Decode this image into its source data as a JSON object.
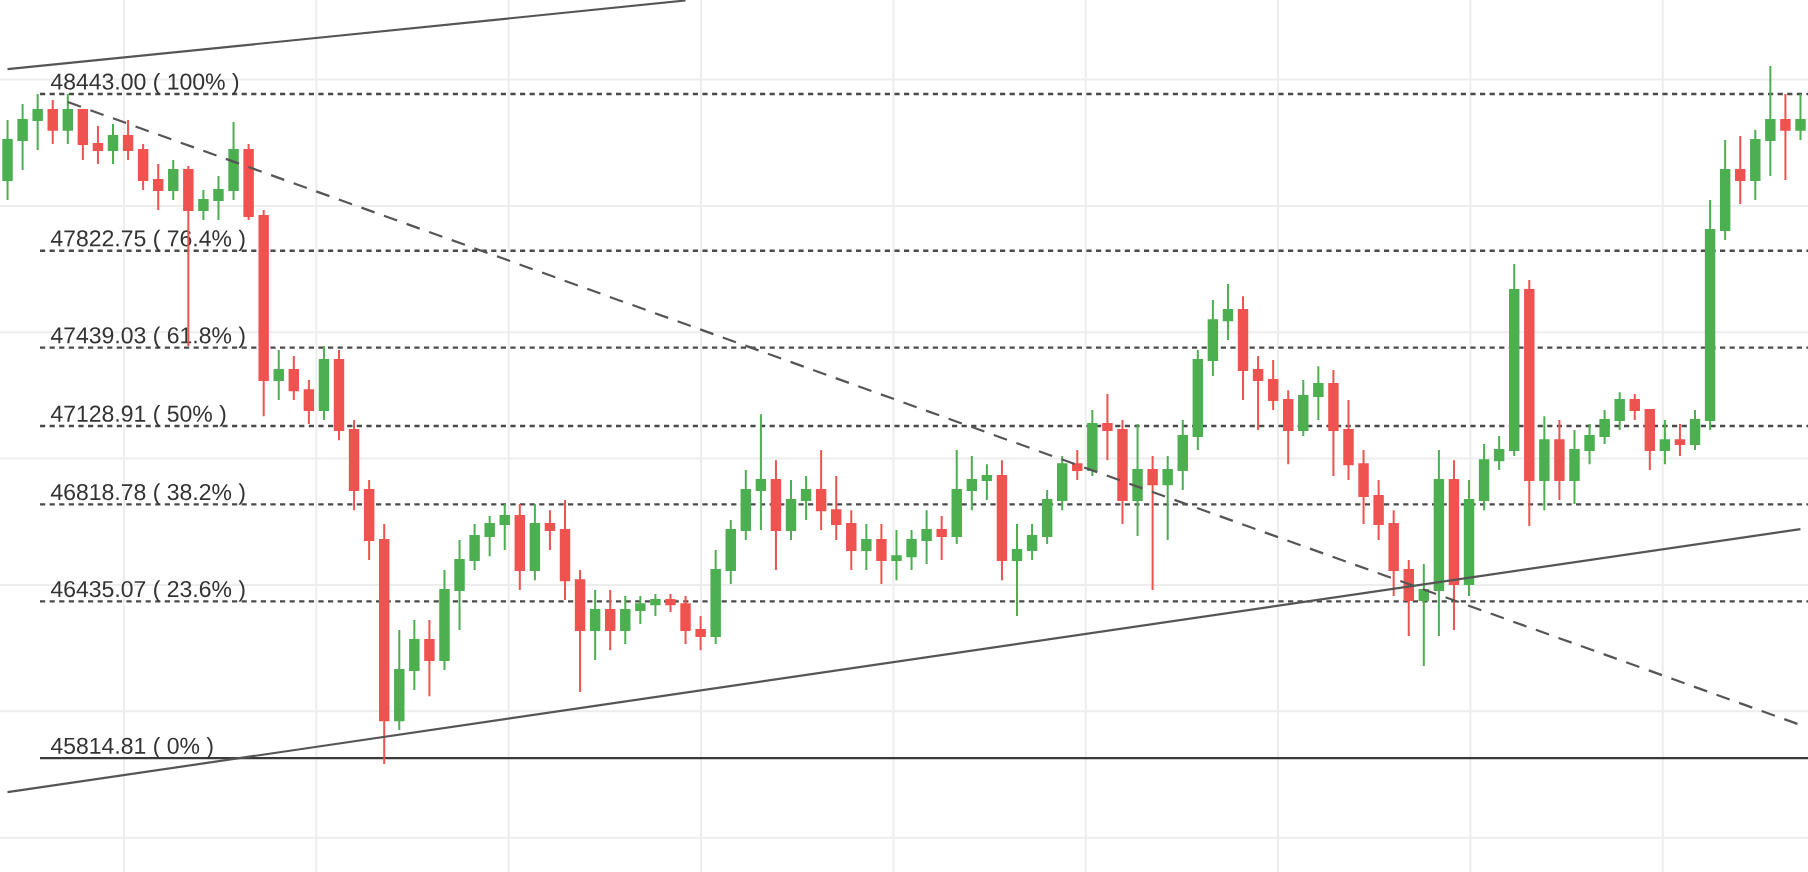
{
  "chart_data": {
    "type": "candlestick",
    "categories": [
      null,
      null,
      null,
      null,
      null,
      null,
      null,
      null,
      null,
      null,
      null,
      null,
      null,
      null,
      null,
      null,
      null,
      null,
      null,
      null,
      null,
      null,
      null,
      null,
      null,
      null,
      null,
      null,
      null,
      null,
      null,
      null,
      null,
      null,
      null,
      null,
      null,
      null,
      null,
      null,
      null,
      null,
      null,
      null,
      null,
      null,
      null,
      null,
      null,
      null,
      null,
      null,
      null,
      null,
      null,
      null,
      null,
      null,
      null,
      null,
      null,
      null,
      null,
      null,
      null,
      null,
      null,
      null,
      null,
      null,
      null,
      null,
      null,
      null,
      null,
      null,
      null,
      null,
      null,
      null,
      null,
      null,
      null,
      null,
      null,
      null,
      null,
      null,
      null,
      null,
      null,
      null,
      null,
      null,
      null,
      null,
      null,
      null,
      null,
      null,
      null,
      null,
      null,
      null,
      null,
      null,
      null,
      null,
      null,
      null,
      null,
      null,
      null,
      null,
      null,
      null,
      null,
      null,
      null,
      null
    ],
    "ylim": [
      45364,
      48815
    ],
    "yticks": [
      {
        "value": 45500,
        "label": null
      },
      {
        "value": 46000,
        "label": null
      },
      {
        "value": 46500,
        "label": null
      },
      {
        "value": 47000,
        "label": null
      },
      {
        "value": 47500,
        "label": null
      },
      {
        "value": 48000,
        "label": null
      },
      {
        "value": 48500,
        "label": null
      }
    ],
    "grid": true,
    "ref_lines": [
      {
        "axis": "y",
        "value": 48443.0,
        "label": "48443.00 ( 100% )",
        "line_style": "dashed",
        "color": "#4a4a4a"
      },
      {
        "axis": "y",
        "value": 47822.75,
        "label": "47822.75 ( 76.4% )",
        "line_style": "dashed",
        "color": "#4a4a4a"
      },
      {
        "axis": "y",
        "value": 47439.03,
        "label": "47439.03 ( 61.8% )",
        "line_style": "dashed",
        "color": "#4a4a4a"
      },
      {
        "axis": "y",
        "value": 47128.91,
        "label": "47128.91 ( 50% )",
        "line_style": "dashed",
        "color": "#4a4a4a"
      },
      {
        "axis": "y",
        "value": 46818.78,
        "label": "46818.78 ( 38.2% )",
        "line_style": "dashed",
        "color": "#4a4a4a"
      },
      {
        "axis": "y",
        "value": 46435.07,
        "label": "46435.07 ( 23.6% )",
        "line_style": "dashed",
        "color": "#4a4a4a"
      },
      {
        "axis": "y",
        "value": 45814.81,
        "label": "45814.81 ( 0% )",
        "line_style": "solid",
        "color": "#3a3a3a"
      }
    ],
    "series": [
      {
        "ohlc": [
          [
            48103,
            48340,
            48023,
            48261
          ],
          [
            48261,
            48403,
            48142,
            48340
          ],
          [
            48340,
            48443,
            48221,
            48380
          ],
          [
            48380,
            48419,
            48245,
            48301
          ],
          [
            48301,
            48443,
            48245,
            48380
          ],
          [
            48380,
            48380,
            48182,
            48245
          ],
          [
            48245,
            48316,
            48166,
            48221
          ],
          [
            48221,
            48324,
            48166,
            48277
          ],
          [
            48277,
            48340,
            48182,
            48221
          ],
          [
            48221,
            48245,
            48063,
            48103
          ],
          [
            48103,
            48166,
            47984,
            48063
          ],
          [
            48063,
            48182,
            48023,
            48142
          ],
          [
            48142,
            48158,
            47446,
            47984
          ],
          [
            47984,
            48063,
            47944,
            48023
          ],
          [
            48023,
            48118,
            47944,
            48063
          ],
          [
            48063,
            48332,
            48023,
            48221
          ],
          [
            48221,
            48245,
            47944,
            47960
          ],
          [
            47960,
            47984,
            47168,
            47311
          ],
          [
            47311,
            47430,
            47232,
            47351
          ],
          [
            47351,
            47406,
            47232,
            47271
          ],
          [
            47271,
            47311,
            47137,
            47192
          ],
          [
            47192,
            47446,
            47153,
            47390
          ],
          [
            47390,
            47430,
            47073,
            47113
          ],
          [
            47113,
            47153,
            46796,
            46876
          ],
          [
            46876,
            46915,
            46599,
            46678
          ],
          [
            46678,
            46741,
            45791,
            45965
          ],
          [
            45965,
            46322,
            45926,
            46163
          ],
          [
            46163,
            46361,
            46084,
            46282
          ],
          [
            46282,
            46361,
            46060,
            46203
          ],
          [
            46203,
            46559,
            46163,
            46480
          ],
          [
            46480,
            46678,
            46322,
            46599
          ],
          [
            46599,
            46741,
            46559,
            46694
          ],
          [
            46694,
            46773,
            46614,
            46741
          ],
          [
            46741,
            46820,
            46638,
            46773
          ],
          [
            46773,
            46820,
            46480,
            46559
          ],
          [
            46559,
            46820,
            46519,
            46741
          ],
          [
            46741,
            46796,
            46638,
            46717
          ],
          [
            46717,
            46836,
            46440,
            46519
          ],
          [
            46519,
            46559,
            46076,
            46322
          ],
          [
            46322,
            46480,
            46203,
            46401
          ],
          [
            46401,
            46480,
            46242,
            46322
          ],
          [
            46322,
            46456,
            46266,
            46401
          ],
          [
            46401,
            46456,
            46345,
            46424
          ],
          [
            46424,
            46464,
            46377,
            46440
          ],
          [
            46440,
            46464,
            46393,
            46424
          ],
          [
            46424,
            46456,
            46266,
            46322
          ],
          [
            46322,
            46377,
            46242,
            46298
          ],
          [
            46298,
            46638,
            46266,
            46559
          ],
          [
            46559,
            46757,
            46504,
            46717
          ],
          [
            46717,
            46955,
            46678,
            46876
          ],
          [
            46876,
            47176,
            46717,
            46915
          ],
          [
            46915,
            46994,
            46559,
            46717
          ],
          [
            46717,
            46915,
            46678,
            46836
          ],
          [
            46836,
            46931,
            46757,
            46876
          ],
          [
            46876,
            47034,
            46717,
            46796
          ],
          [
            46796,
            46931,
            46678,
            46741
          ],
          [
            46741,
            46796,
            46559,
            46638
          ],
          [
            46638,
            46741,
            46559,
            46678
          ],
          [
            46678,
            46741,
            46504,
            46599
          ],
          [
            46599,
            46717,
            46519,
            46614
          ],
          [
            46614,
            46717,
            46559,
            46678
          ],
          [
            46678,
            46796,
            46583,
            46717
          ],
          [
            46717,
            46773,
            46599,
            46694
          ],
          [
            46694,
            47034,
            46662,
            46876
          ],
          [
            46876,
            47010,
            46796,
            46915
          ],
          [
            46915,
            46978,
            46836,
            46931
          ],
          [
            46931,
            46994,
            46519,
            46599
          ],
          [
            46599,
            46741,
            46377,
            46638
          ],
          [
            46638,
            46741,
            46599,
            46694
          ],
          [
            46694,
            46876,
            46662,
            46836
          ],
          [
            46836,
            47010,
            46796,
            46978
          ],
          [
            46978,
            47034,
            46915,
            46955
          ],
          [
            46955,
            47192,
            46931,
            47137
          ],
          [
            47137,
            47256,
            46994,
            47113
          ],
          [
            47113,
            47153,
            46741,
            46836
          ],
          [
            46836,
            47137,
            46694,
            46955
          ],
          [
            46955,
            47010,
            46480,
            46899
          ],
          [
            46899,
            47010,
            46678,
            46955
          ],
          [
            46955,
            47153,
            46876,
            47089
          ],
          [
            47089,
            47430,
            47034,
            47390
          ],
          [
            47390,
            47628,
            47327,
            47548
          ],
          [
            47548,
            47691,
            47469,
            47588
          ],
          [
            47588,
            47643,
            47232,
            47351
          ],
          [
            47351,
            47406,
            47113,
            47311
          ],
          [
            47311,
            47390,
            47192,
            47232
          ],
          [
            47232,
            47271,
            46978,
            47113
          ],
          [
            47113,
            47311,
            47089,
            47248
          ],
          [
            47248,
            47366,
            47153,
            47295
          ],
          [
            47295,
            47351,
            46931,
            47113
          ],
          [
            47113,
            47232,
            46915,
            46978
          ],
          [
            46978,
            47034,
            46741,
            46852
          ],
          [
            46852,
            46915,
            46678,
            46741
          ],
          [
            46741,
            46796,
            46456,
            46559
          ],
          [
            46559,
            46599,
            46298,
            46440
          ],
          [
            46440,
            46583,
            46179,
            46480
          ],
          [
            46480,
            47034,
            46298,
            46915
          ],
          [
            46915,
            46994,
            46322,
            46504
          ],
          [
            46504,
            46915,
            46456,
            46836
          ],
          [
            46836,
            47058,
            46796,
            46994
          ],
          [
            46994,
            47089,
            46955,
            47034
          ],
          [
            47034,
            47770,
            47010,
            47667
          ],
          [
            47667,
            47707,
            46733,
            46915
          ],
          [
            46915,
            47168,
            46796,
            47073
          ],
          [
            47073,
            47153,
            46836,
            46915
          ],
          [
            46915,
            47113,
            46820,
            47034
          ],
          [
            47034,
            47137,
            46978,
            47089
          ],
          [
            47089,
            47192,
            47058,
            47153
          ],
          [
            47153,
            47263,
            47113,
            47232
          ],
          [
            47232,
            47256,
            47153,
            47192
          ],
          [
            47192,
            47192,
            46955,
            47034
          ],
          [
            47034,
            47153,
            46978,
            47073
          ],
          [
            47073,
            47137,
            47010,
            47058
          ],
          [
            47058,
            47192,
            47034,
            47153
          ],
          [
            47153,
            48023,
            47113,
            47905
          ],
          [
            47905,
            48261,
            47865,
            48142
          ],
          [
            48142,
            48277,
            48008,
            48103
          ],
          [
            48103,
            48301,
            48023,
            48261
          ],
          [
            48261,
            48554,
            48118,
            48340
          ],
          [
            48340,
            48443,
            48103,
            48301
          ],
          [
            48301,
            48443,
            48261,
            48340
          ]
        ],
        "colors": [
          "#4caf50",
          "#4caf50",
          "#4caf50",
          "#ef5350",
          "#4caf50",
          "#ef5350",
          "#ef5350",
          "#4caf50",
          "#ef5350",
          "#ef5350",
          "#ef5350",
          "#4caf50",
          "#ef5350",
          "#4caf50",
          "#4caf50",
          "#4caf50",
          "#ef5350",
          "#ef5350",
          "#4caf50",
          "#ef5350",
          "#ef5350",
          "#4caf50",
          "#ef5350",
          "#ef5350",
          "#ef5350",
          "#ef5350",
          "#4caf50",
          "#4caf50",
          "#ef5350",
          "#4caf50",
          "#4caf50",
          "#4caf50",
          "#4caf50",
          "#4caf50",
          "#ef5350",
          "#4caf50",
          "#ef5350",
          "#ef5350",
          "#ef5350",
          "#4caf50",
          "#ef5350",
          "#4caf50",
          "#4caf50",
          "#4caf50",
          "#ef5350",
          "#ef5350",
          "#ef5350",
          "#4caf50",
          "#4caf50",
          "#4caf50",
          "#4caf50",
          "#ef5350",
          "#4caf50",
          "#4caf50",
          "#ef5350",
          "#ef5350",
          "#ef5350",
          "#4caf50",
          "#ef5350",
          "#4caf50",
          "#4caf50",
          "#4caf50",
          "#ef5350",
          "#4caf50",
          "#4caf50",
          "#4caf50",
          "#ef5350",
          "#4caf50",
          "#4caf50",
          "#4caf50",
          "#4caf50",
          "#ef5350",
          "#4caf50",
          "#ef5350",
          "#ef5350",
          "#4caf50",
          "#ef5350",
          "#4caf50",
          "#4caf50",
          "#4caf50",
          "#4caf50",
          "#4caf50",
          "#ef5350",
          "#ef5350",
          "#ef5350",
          "#ef5350",
          "#4caf50",
          "#4caf50",
          "#ef5350",
          "#ef5350",
          "#ef5350",
          "#ef5350",
          "#ef5350",
          "#ef5350",
          "#4caf50",
          "#4caf50",
          "#ef5350",
          "#4caf50",
          "#4caf50",
          "#4caf50",
          "#4caf50",
          "#ef5350",
          "#4caf50",
          "#ef5350",
          "#4caf50",
          "#4caf50",
          "#4caf50",
          "#4caf50",
          "#ef5350",
          "#ef5350",
          "#4caf50",
          "#ef5350",
          "#4caf50",
          "#4caf50",
          "#4caf50",
          "#ef5350",
          "#4caf50",
          "#4caf50",
          "#ef5350",
          "#4caf50"
        ]
      },
      {
        "type": "line",
        "color": "#555555",
        "line_style": "solid",
        "values": [
          48541,
          null,
          null,
          null,
          null,
          null,
          null,
          null,
          null,
          null,
          null,
          null,
          null,
          null,
          null,
          null,
          null,
          null,
          null,
          null,
          null,
          null,
          null,
          null,
          null,
          null,
          null,
          null,
          null,
          null,
          null,
          null,
          null,
          null,
          null,
          null,
          null,
          null,
          null,
          null,
          null,
          null,
          null,
          null,
          null,
          48813,
          null,
          null,
          null,
          null,
          null,
          null,
          null,
          null,
          null,
          null,
          null,
          null,
          null,
          null,
          null,
          null,
          null,
          null,
          null,
          null,
          null,
          null,
          null,
          null,
          null,
          null,
          null,
          null,
          null,
          null,
          null,
          null,
          null,
          null,
          null,
          null,
          null,
          null,
          null,
          null,
          null,
          null,
          null,
          null,
          null,
          null,
          null,
          null,
          null,
          null,
          null,
          null,
          null,
          null,
          null,
          null,
          null,
          null,
          null,
          null,
          null,
          null,
          null,
          null,
          null,
          null,
          null,
          null,
          null,
          null,
          null,
          null,
          null,
          null
        ]
      },
      {
        "type": "line",
        "color": "#555555",
        "line_style": "solid",
        "values": [
          45680,
          null,
          null,
          null,
          null,
          null,
          null,
          null,
          null,
          null,
          null,
          null,
          null,
          null,
          null,
          null,
          null,
          null,
          null,
          null,
          null,
          null,
          null,
          null,
          null,
          null,
          null,
          null,
          null,
          null,
          null,
          null,
          null,
          null,
          null,
          null,
          null,
          null,
          null,
          null,
          null,
          null,
          null,
          null,
          null,
          null,
          null,
          null,
          null,
          null,
          null,
          null,
          null,
          null,
          null,
          null,
          null,
          null,
          null,
          null,
          null,
          null,
          null,
          null,
          null,
          null,
          null,
          null,
          null,
          null,
          null,
          null,
          null,
          null,
          null,
          null,
          null,
          null,
          null,
          null,
          null,
          null,
          null,
          null,
          null,
          null,
          null,
          null,
          null,
          null,
          null,
          null,
          null,
          null,
          null,
          null,
          null,
          null,
          null,
          null,
          null,
          null,
          null,
          null,
          null,
          null,
          null,
          null,
          null,
          null,
          null,
          null,
          null,
          null,
          null,
          null,
          null,
          null,
          null,
          46721
        ]
      },
      {
        "type": "line",
        "color": "#555555",
        "line_style": "dashed",
        "values": [
          null,
          null,
          null,
          null,
          48411,
          null,
          null,
          null,
          null,
          null,
          null,
          null,
          null,
          null,
          null,
          null,
          null,
          null,
          null,
          null,
          null,
          null,
          null,
          null,
          null,
          null,
          null,
          null,
          null,
          null,
          null,
          null,
          null,
          null,
          null,
          null,
          null,
          null,
          null,
          null,
          null,
          null,
          null,
          null,
          null,
          null,
          null,
          null,
          null,
          null,
          null,
          null,
          null,
          null,
          null,
          null,
          null,
          null,
          null,
          null,
          null,
          null,
          null,
          null,
          null,
          null,
          null,
          null,
          null,
          null,
          null,
          null,
          null,
          null,
          null,
          null,
          null,
          null,
          null,
          null,
          null,
          null,
          null,
          null,
          null,
          null,
          null,
          null,
          null,
          null,
          null,
          null,
          null,
          null,
          null,
          null,
          null,
          null,
          null,
          null,
          null,
          null,
          null,
          null,
          null,
          null,
          null,
          null,
          null,
          null,
          null,
          null,
          null,
          null,
          null,
          null,
          null,
          null,
          null,
          45946
        ]
      }
    ]
  }
}
